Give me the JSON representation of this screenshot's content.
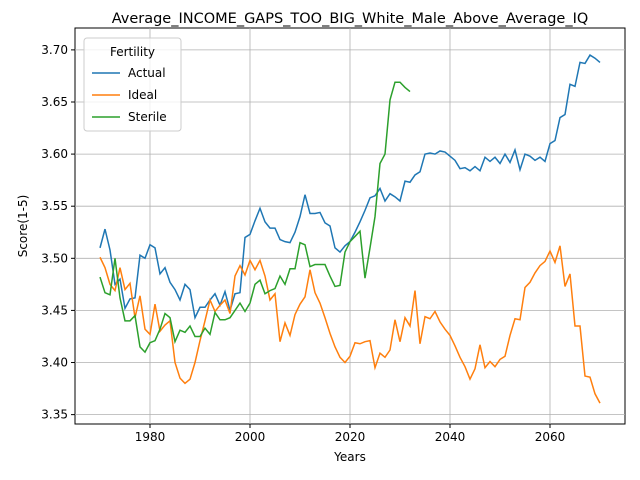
{
  "chart_data": {
    "type": "line",
    "title": "Average_INCOME_GAPS_TOO_BIG_White_Male_Above_Average_IQ",
    "x_label": "Years",
    "y_label": "Score(1-5)",
    "legend_title": "Fertility",
    "legend_position": "upper left",
    "grid": true,
    "xlim": [
      1965,
      2075
    ],
    "ylim": [
      3.341,
      3.721
    ],
    "xticks": [
      1980,
      2000,
      2020,
      2040,
      2060
    ],
    "yticks": [
      3.35,
      {
        "value": 3.4,
        "label": "3.40"
      },
      3.45,
      {
        "value": 3.5,
        "label": "3.50"
      },
      3.55,
      {
        "value": 3.6,
        "label": "3.60"
      },
      3.65,
      {
        "value": 3.7,
        "label": "3.70"
      }
    ],
    "x": [
      1970,
      1971,
      1972,
      1973,
      1974,
      1975,
      1976,
      1977,
      1978,
      1979,
      1980,
      1981,
      1982,
      1983,
      1984,
      1985,
      1986,
      1987,
      1988,
      1989,
      1990,
      1991,
      1992,
      1993,
      1994,
      1995,
      1996,
      1997,
      1998,
      1999,
      2000,
      2001,
      2002,
      2003,
      2004,
      2005,
      2006,
      2007,
      2008,
      2009,
      2010,
      2011,
      2012,
      2013,
      2014,
      2015,
      2016,
      2017,
      2018,
      2019,
      2020,
      2021,
      2022,
      2023,
      2024,
      2025,
      2026,
      2027,
      2028,
      2029,
      2030,
      2031,
      2032,
      2033,
      2034,
      2035,
      2036,
      2037,
      2038,
      2039,
      2040,
      2041,
      2042,
      2043,
      2044,
      2045,
      2046,
      2047,
      2048,
      2049,
      2050,
      2051,
      2052,
      2053,
      2054,
      2055,
      2056,
      2057,
      2058,
      2059,
      2060,
      2061,
      2062,
      2063,
      2064,
      2065,
      2066,
      2067,
      2068,
      2069,
      2070
    ],
    "series": [
      {
        "name": "Actual",
        "color": "#1f77b4",
        "values": [
          3.51,
          3.528,
          3.508,
          3.475,
          3.48,
          3.452,
          3.461,
          3.462,
          3.503,
          3.5,
          3.513,
          3.51,
          3.485,
          3.491,
          3.477,
          3.47,
          3.46,
          3.475,
          3.47,
          3.443,
          3.453,
          3.453,
          3.46,
          3.466,
          3.455,
          3.468,
          3.45,
          3.466,
          3.467,
          3.52,
          3.523,
          3.536,
          3.548,
          3.535,
          3.529,
          3.529,
          3.518,
          3.516,
          3.515,
          3.525,
          3.54,
          3.561,
          3.543,
          3.543,
          3.544,
          3.534,
          3.531,
          3.51,
          3.506,
          3.512,
          3.516,
          3.525,
          3.535,
          3.546,
          3.558,
          3.56,
          3.567,
          3.555,
          3.562,
          3.559,
          3.555,
          3.574,
          3.573,
          3.58,
          3.583,
          3.6,
          3.601,
          3.6,
          3.603,
          3.602,
          3.598,
          3.594,
          3.586,
          3.587,
          3.584,
          3.588,
          3.584,
          3.597,
          3.593,
          3.597,
          3.591,
          3.6,
          3.592,
          3.604,
          3.585,
          3.6,
          3.598,
          3.594,
          3.597,
          3.593,
          3.61,
          3.613,
          3.635,
          3.638,
          3.667,
          3.665,
          3.688,
          3.687,
          3.695,
          3.692,
          3.688
        ]
      },
      {
        "name": "Ideal",
        "color": "#ff7f0e",
        "values": [
          3.501,
          3.491,
          3.475,
          3.469,
          3.491,
          3.47,
          3.476,
          3.443,
          3.464,
          3.432,
          3.427,
          3.456,
          3.43,
          3.436,
          3.44,
          3.4,
          3.385,
          3.38,
          3.384,
          3.4,
          3.421,
          3.44,
          3.46,
          3.449,
          3.455,
          3.46,
          3.447,
          3.483,
          3.493,
          3.484,
          3.498,
          3.489,
          3.498,
          3.483,
          3.46,
          3.466,
          3.42,
          3.438,
          3.426,
          3.446,
          3.456,
          3.463,
          3.489,
          3.467,
          3.457,
          3.443,
          3.428,
          3.415,
          3.405,
          3.4,
          3.406,
          3.419,
          3.418,
          3.42,
          3.421,
          3.395,
          3.409,
          3.405,
          3.412,
          3.441,
          3.42,
          3.443,
          3.435,
          3.469,
          3.418,
          3.444,
          3.442,
          3.449,
          3.439,
          3.432,
          3.426,
          3.416,
          3.405,
          3.396,
          3.384,
          3.394,
          3.417,
          3.395,
          3.401,
          3.396,
          3.403,
          3.406,
          3.426,
          3.442,
          3.441,
          3.472,
          3.477,
          3.486,
          3.493,
          3.497,
          3.507,
          3.496,
          3.512,
          3.473,
          3.485,
          3.435,
          3.435,
          3.387,
          3.386,
          3.37,
          3.361
        ]
      },
      {
        "name": "Sterile",
        "color": "#2ca02c",
        "x": [
          1970,
          1971,
          1972,
          1973,
          1974,
          1975,
          1976,
          1977,
          1978,
          1979,
          1980,
          1981,
          1982,
          1983,
          1984,
          1985,
          1986,
          1987,
          1988,
          1989,
          1990,
          1991,
          1992,
          1993,
          1994,
          1995,
          1996,
          1997,
          1998,
          1999,
          2000,
          2001,
          2002,
          2003,
          2004,
          2005,
          2006,
          2007,
          2008,
          2009,
          2010,
          2011,
          2012,
          2013,
          2014,
          2015,
          2016,
          2017,
          2018,
          2019,
          2020,
          2021,
          2022,
          2023,
          2024,
          2025,
          2026,
          2027,
          2028,
          2029,
          2030,
          2031,
          2032
        ],
        "values": [
          3.482,
          3.467,
          3.465,
          3.5,
          3.462,
          3.44,
          3.44,
          3.445,
          3.415,
          3.41,
          3.419,
          3.421,
          3.432,
          3.447,
          3.443,
          3.42,
          3.431,
          3.429,
          3.435,
          3.425,
          3.425,
          3.433,
          3.427,
          3.448,
          3.441,
          3.441,
          3.443,
          3.45,
          3.457,
          3.449,
          3.457,
          3.475,
          3.479,
          3.466,
          3.469,
          3.471,
          3.483,
          3.475,
          3.49,
          3.49,
          3.515,
          3.513,
          3.492,
          3.494,
          3.494,
          3.494,
          3.483,
          3.473,
          3.474,
          3.506,
          3.516,
          3.521,
          3.526,
          3.481,
          3.51,
          3.54,
          3.591,
          3.6,
          3.652,
          3.669,
          3.669,
          3.664,
          3.66
        ]
      }
    ]
  }
}
